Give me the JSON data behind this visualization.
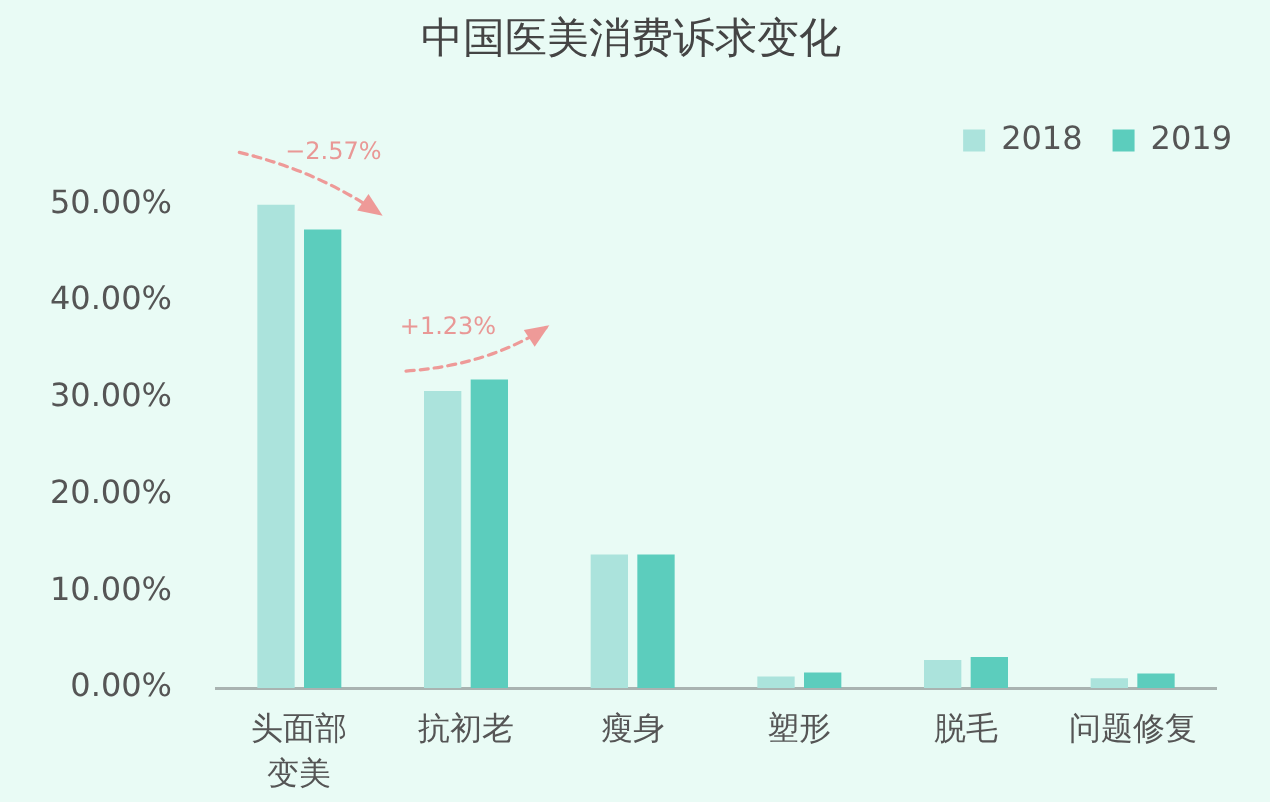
{
  "chart_data": {
    "type": "bar",
    "title": "中国医美消费诉求变化",
    "categories": [
      "头面部变美",
      "抗初老",
      "瘦身",
      "塑形",
      "脱毛",
      "问题修复"
    ],
    "series": [
      {
        "name": "2018",
        "color": "#abe3dc",
        "values": [
          50.0,
          30.7,
          13.8,
          1.2,
          2.9,
          1.0
        ]
      },
      {
        "name": "2019",
        "color": "#5ccdbd",
        "values": [
          47.4,
          31.9,
          13.8,
          1.6,
          3.2,
          1.5
        ]
      }
    ],
    "ylim": [
      0,
      50
    ],
    "yticks": [
      {
        "value": 0,
        "label": "0.00%"
      },
      {
        "value": 10,
        "label": "10.00%"
      },
      {
        "value": 20,
        "label": "20.00%"
      },
      {
        "value": 30,
        "label": "30.00%"
      },
      {
        "value": 40,
        "label": "40.00%"
      },
      {
        "value": 50,
        "label": "50.00%"
      }
    ],
    "grid": false,
    "legend": "top right",
    "annotations": [
      {
        "text": "−2.57%",
        "x": "头面部变美",
        "y": 47.4
      },
      {
        "text": "+1.23%",
        "x": "抗初老",
        "y": 31.9
      }
    ]
  }
}
